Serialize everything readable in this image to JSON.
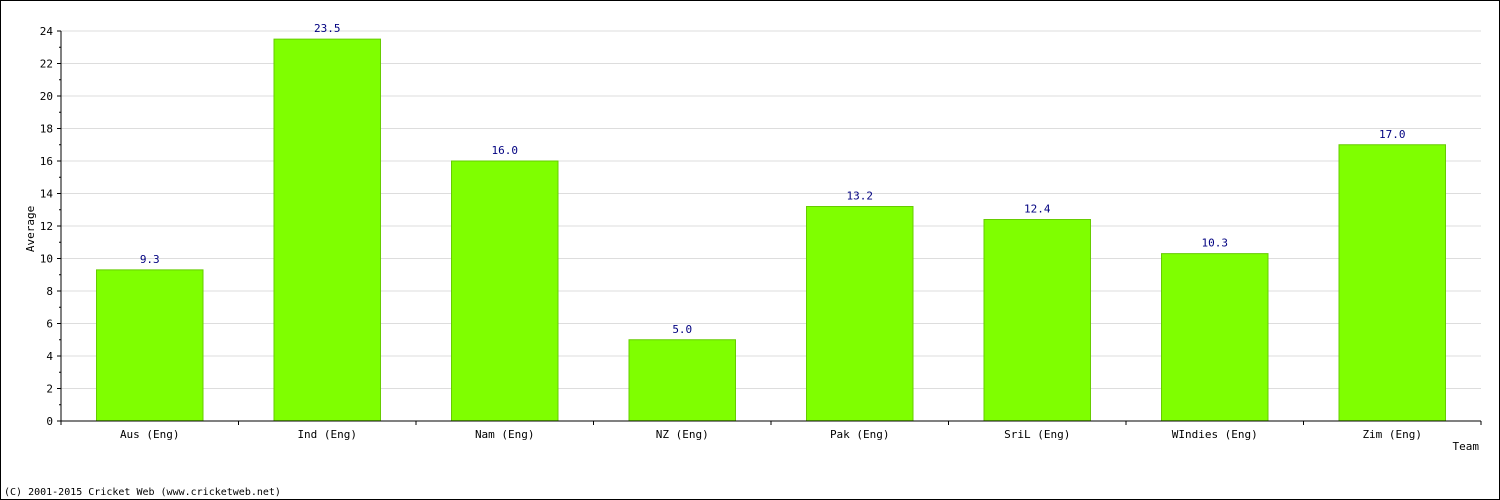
{
  "chart_data": {
    "type": "bar",
    "categories": [
      "Aus (Eng)",
      "Ind (Eng)",
      "Nam (Eng)",
      "NZ (Eng)",
      "Pak (Eng)",
      "SriL (Eng)",
      "WIndies (Eng)",
      "Zim (Eng)"
    ],
    "values": [
      9.3,
      23.5,
      16.0,
      5.0,
      13.2,
      12.4,
      10.3,
      17.0
    ],
    "value_labels": [
      "9.3",
      "23.5",
      "16.0",
      "5.0",
      "13.2",
      "12.4",
      "10.3",
      "17.0"
    ],
    "xlabel": "Team",
    "ylabel": "Average",
    "ylim": [
      0,
      24
    ],
    "yticks": [
      0,
      2,
      4,
      6,
      8,
      10,
      12,
      14,
      16,
      18,
      20,
      22,
      24
    ],
    "grid": true,
    "colors": {
      "bar_fill": "#7fff00",
      "bar_stroke": "#66cc00",
      "data_label": "#000080",
      "grid": "#dddddd",
      "axis": "#000000"
    }
  },
  "footer": {
    "copyright": "(C) 2001-2015 Cricket Web (www.cricketweb.net)"
  }
}
